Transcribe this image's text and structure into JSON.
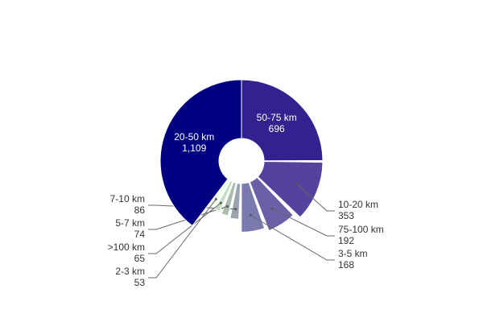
{
  "chart_data": {
    "type": "pie",
    "variant": "donut",
    "title": "",
    "categories": [
      "50-75 km",
      "10-20 km",
      "75-100 km",
      "3-5 km",
      "7-10 km",
      "5-7 km",
      ">100 km",
      "2-3 km",
      "20-50 km"
    ],
    "value_labels": [
      "696",
      "353",
      "192",
      "168",
      "86",
      "74",
      "65",
      "53",
      "1,109"
    ],
    "values": [
      696,
      353,
      192,
      168,
      86,
      74,
      65,
      53,
      1109
    ],
    "colors": [
      "#35208f",
      "#55429c",
      "#6b5fa8",
      "#7b7aae",
      "#9aa4ad",
      "#aabdaf",
      "#c4e0c4",
      "#e4ffe4",
      "#000080"
    ],
    "label_placement": [
      "inside",
      "outside-right",
      "outside-right",
      "outside-right",
      "outside-left",
      "outside-left",
      "outside-left",
      "outside-left",
      "inside"
    ]
  }
}
